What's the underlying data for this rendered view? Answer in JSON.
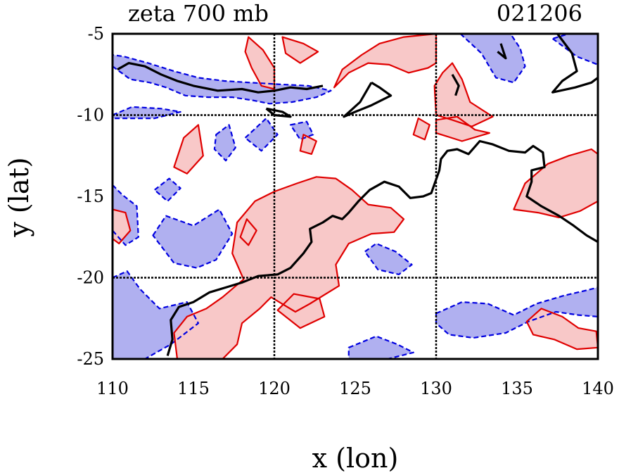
{
  "chart_data": {
    "type": "contour",
    "title": "zeta 700 mb",
    "date_label": "021206",
    "xlabel": "x (lon)",
    "ylabel": "y (lat)",
    "xlim": [
      110,
      140
    ],
    "ylim": [
      -25,
      -5
    ],
    "xticks": [
      "110",
      "115",
      "120",
      "125",
      "130",
      "135",
      "140"
    ],
    "yticks": [
      "-5",
      "-10",
      "-15",
      "-20",
      "-25"
    ],
    "xtick_values": [
      110,
      115,
      120,
      125,
      130,
      135,
      140
    ],
    "ytick_values": [
      -5,
      -10,
      -15,
      -20,
      -25
    ],
    "grid_x": [
      120,
      130
    ],
    "grid_y": [
      -10,
      -20
    ],
    "colors": {
      "positive_fill": "#f8c8c8",
      "positive_line": "#e00000",
      "negative_fill": "#b0b0f0",
      "negative_line": "#0000e0",
      "coastline": "#000000",
      "grid": "#000000"
    },
    "coastline": [
      [
        [
          110.3,
          -7.2
        ],
        [
          111.0,
          -6.8
        ],
        [
          112.0,
          -7.0
        ],
        [
          113.0,
          -7.5
        ],
        [
          114.0,
          -7.9
        ],
        [
          115.0,
          -8.2
        ],
        [
          116.5,
          -8.5
        ],
        [
          118.0,
          -8.4
        ],
        [
          119.0,
          -8.6
        ],
        [
          120.0,
          -8.5
        ],
        [
          121.0,
          -8.3
        ],
        [
          122.0,
          -8.4
        ],
        [
          123.0,
          -8.2
        ]
      ],
      [
        [
          126.0,
          -8.0
        ],
        [
          126.5,
          -8.3
        ],
        [
          127.2,
          -8.8
        ],
        [
          126.0,
          -9.4
        ],
        [
          125.0,
          -9.8
        ],
        [
          124.3,
          -10.1
        ],
        [
          125.3,
          -9.2
        ],
        [
          126.0,
          -8.0
        ]
      ],
      [
        [
          119.5,
          -9.6
        ],
        [
          120.5,
          -9.8
        ],
        [
          121.0,
          -10.1
        ],
        [
          120.0,
          -10.0
        ],
        [
          119.5,
          -9.6
        ]
      ],
      [
        [
          131.0,
          -7.5
        ],
        [
          131.4,
          -8.2
        ],
        [
          131.2,
          -8.8
        ]
      ],
      [
        [
          134.0,
          -5.6
        ],
        [
          134.3,
          -6.5
        ],
        [
          133.8,
          -6.1
        ]
      ],
      [
        [
          137.5,
          -5.0
        ],
        [
          138.4,
          -6.2
        ],
        [
          138.7,
          -7.3
        ],
        [
          137.8,
          -7.9
        ],
        [
          137.2,
          -8.6
        ],
        [
          138.6,
          -8.3
        ],
        [
          139.6,
          -8.0
        ],
        [
          140.0,
          -7.7
        ]
      ],
      [
        [
          113.4,
          -24.8
        ],
        [
          113.7,
          -23.8
        ],
        [
          113.6,
          -22.6
        ],
        [
          114.1,
          -21.8
        ],
        [
          115.0,
          -21.5
        ],
        [
          116.0,
          -20.9
        ],
        [
          117.0,
          -20.6
        ],
        [
          118.0,
          -20.3
        ],
        [
          119.0,
          -19.9
        ],
        [
          120.2,
          -19.8
        ],
        [
          121.0,
          -19.4
        ],
        [
          121.8,
          -18.5
        ],
        [
          122.3,
          -17.8
        ],
        [
          122.2,
          -17.0
        ],
        [
          123.0,
          -16.6
        ],
        [
          123.6,
          -16.2
        ],
        [
          124.2,
          -16.4
        ],
        [
          124.6,
          -16.0
        ],
        [
          125.2,
          -15.3
        ],
        [
          125.9,
          -14.6
        ],
        [
          126.8,
          -14.1
        ],
        [
          127.7,
          -14.4
        ],
        [
          128.4,
          -15.1
        ],
        [
          129.2,
          -15.0
        ],
        [
          129.7,
          -14.8
        ],
        [
          130.2,
          -13.4
        ],
        [
          130.3,
          -12.7
        ],
        [
          130.7,
          -12.2
        ],
        [
          131.3,
          -12.1
        ],
        [
          132.0,
          -12.4
        ],
        [
          132.7,
          -11.6
        ],
        [
          133.5,
          -11.8
        ],
        [
          134.5,
          -12.2
        ],
        [
          135.5,
          -12.3
        ],
        [
          136.0,
          -11.9
        ],
        [
          136.6,
          -12.3
        ],
        [
          136.7,
          -13.2
        ],
        [
          135.9,
          -13.4
        ],
        [
          135.9,
          -14.1
        ],
        [
          135.6,
          -15.0
        ],
        [
          136.5,
          -15.6
        ],
        [
          137.6,
          -16.2
        ],
        [
          138.5,
          -16.8
        ],
        [
          139.3,
          -17.4
        ],
        [
          140.0,
          -17.8
        ]
      ]
    ],
    "positive_regions": [
      [
        [
          114.0,
          -25.0
        ],
        [
          113.8,
          -23.4
        ],
        [
          114.6,
          -22.4
        ],
        [
          115.8,
          -21.9
        ],
        [
          116.8,
          -21.2
        ],
        [
          118.1,
          -20.1
        ],
        [
          117.4,
          -18.5
        ],
        [
          117.7,
          -16.6
        ],
        [
          118.8,
          -15.3
        ],
        [
          120.0,
          -14.7
        ],
        [
          121.4,
          -14.2
        ],
        [
          122.6,
          -13.8
        ],
        [
          123.8,
          -13.9
        ],
        [
          124.8,
          -14.6
        ],
        [
          125.8,
          -15.5
        ],
        [
          127.2,
          -15.7
        ],
        [
          128.0,
          -16.4
        ],
        [
          127.4,
          -17.2
        ],
        [
          126.0,
          -17.3
        ],
        [
          124.6,
          -17.9
        ],
        [
          123.8,
          -19.2
        ],
        [
          124.0,
          -20.5
        ],
        [
          122.2,
          -21.6
        ],
        [
          121.3,
          -22.1
        ],
        [
          119.8,
          -21.2
        ],
        [
          119.1,
          -21.9
        ],
        [
          118.0,
          -22.8
        ],
        [
          117.7,
          -24.1
        ],
        [
          116.8,
          -25.0
        ]
      ],
      [
        [
          120.2,
          -22.0
        ],
        [
          121.2,
          -21.0
        ],
        [
          122.8,
          -21.3
        ],
        [
          123.1,
          -22.4
        ],
        [
          121.6,
          -23.1
        ],
        [
          120.2,
          -22.0
        ]
      ],
      [
        [
          117.9,
          -17.5
        ],
        [
          118.3,
          -16.4
        ],
        [
          118.9,
          -17.1
        ],
        [
          118.4,
          -18.0
        ]
      ],
      [
        [
          134.8,
          -15.8
        ],
        [
          135.5,
          -14.2
        ],
        [
          136.9,
          -13.0
        ],
        [
          138.2,
          -12.5
        ],
        [
          139.6,
          -12.1
        ],
        [
          140.0,
          -12.4
        ],
        [
          140.0,
          -15.3
        ],
        [
          138.9,
          -15.9
        ],
        [
          137.6,
          -16.3
        ],
        [
          136.3,
          -16.0
        ],
        [
          134.8,
          -15.8
        ]
      ],
      [
        [
          130.0,
          -10.3
        ],
        [
          131.3,
          -10.1
        ],
        [
          132.4,
          -10.9
        ],
        [
          133.3,
          -11.1
        ],
        [
          131.6,
          -11.6
        ],
        [
          130.0,
          -11.1
        ]
      ],
      [
        [
          128.6,
          -11.2
        ],
        [
          128.9,
          -10.2
        ],
        [
          129.6,
          -10.6
        ],
        [
          129.3,
          -11.5
        ]
      ],
      [
        [
          130.0,
          -10.0
        ],
        [
          129.9,
          -8.2
        ],
        [
          130.4,
          -7.4
        ],
        [
          131.0,
          -6.8
        ],
        [
          131.6,
          -7.8
        ],
        [
          132.1,
          -9.2
        ],
        [
          133.5,
          -10.1
        ],
        [
          132.2,
          -10.7
        ],
        [
          131.0,
          -10.3
        ],
        [
          130.0,
          -10.0
        ]
      ],
      [
        [
          123.7,
          -8.3
        ],
        [
          124.6,
          -7.4
        ],
        [
          125.8,
          -6.8
        ],
        [
          127.1,
          -6.9
        ],
        [
          128.3,
          -7.4
        ],
        [
          129.5,
          -7.1
        ],
        [
          130.0,
          -6.8
        ],
        [
          130.0,
          -5.0
        ],
        [
          128.0,
          -5.2
        ],
        [
          126.5,
          -5.6
        ],
        [
          125.4,
          -6.3
        ],
        [
          124.2,
          -7.2
        ],
        [
          123.7,
          -8.3
        ]
      ],
      [
        [
          118.4,
          -5.2
        ],
        [
          119.3,
          -6.0
        ],
        [
          120.0,
          -7.1
        ],
        [
          120.0,
          -8.4
        ],
        [
          119.2,
          -8.2
        ],
        [
          118.6,
          -7.1
        ],
        [
          118.2,
          -6.1
        ]
      ],
      [
        [
          120.5,
          -5.2
        ],
        [
          121.8,
          -5.6
        ],
        [
          122.7,
          -6.1
        ],
        [
          121.6,
          -6.8
        ],
        [
          120.7,
          -6.2
        ]
      ],
      [
        [
          113.8,
          -13.2
        ],
        [
          114.4,
          -11.4
        ],
        [
          115.3,
          -10.6
        ],
        [
          115.6,
          -12.5
        ],
        [
          114.6,
          -13.6
        ]
      ],
      [
        [
          110.0,
          -15.8
        ],
        [
          110.8,
          -16.0
        ],
        [
          111.1,
          -17.1
        ],
        [
          110.4,
          -17.9
        ],
        [
          110.0,
          -17.6
        ]
      ],
      [
        [
          135.6,
          -22.7
        ],
        [
          136.5,
          -21.9
        ],
        [
          137.8,
          -22.4
        ],
        [
          138.8,
          -23.1
        ],
        [
          139.9,
          -23.3
        ],
        [
          140.0,
          -24.3
        ],
        [
          138.7,
          -24.4
        ],
        [
          137.3,
          -23.8
        ],
        [
          136.0,
          -23.5
        ],
        [
          135.6,
          -22.7
        ]
      ],
      [
        [
          121.6,
          -12.2
        ],
        [
          121.8,
          -11.2
        ],
        [
          122.6,
          -11.6
        ],
        [
          122.3,
          -12.4
        ]
      ]
    ],
    "negative_regions": [
      [
        [
          110.0,
          -7.0
        ],
        [
          111.1,
          -7.8
        ],
        [
          112.3,
          -8.0
        ],
        [
          113.3,
          -8.3
        ],
        [
          114.5,
          -8.8
        ],
        [
          115.9,
          -8.9
        ],
        [
          117.4,
          -8.9
        ],
        [
          118.7,
          -9.1
        ],
        [
          119.7,
          -9.3
        ],
        [
          121.1,
          -9.2
        ],
        [
          122.6,
          -8.9
        ],
        [
          123.5,
          -8.5
        ],
        [
          122.1,
          -8.2
        ],
        [
          120.2,
          -8.1
        ],
        [
          118.5,
          -8.0
        ],
        [
          116.9,
          -7.9
        ],
        [
          115.3,
          -7.7
        ],
        [
          113.8,
          -7.3
        ],
        [
          112.2,
          -6.8
        ],
        [
          110.7,
          -6.4
        ],
        [
          110.0,
          -6.3
        ]
      ],
      [
        [
          110.0,
          -10.0
        ],
        [
          111.2,
          -9.5
        ],
        [
          113.0,
          -9.6
        ],
        [
          114.2,
          -9.8
        ],
        [
          112.6,
          -10.2
        ],
        [
          110.0,
          -10.2
        ]
      ],
      [
        [
          116.4,
          -11.2
        ],
        [
          117.2,
          -10.6
        ],
        [
          117.6,
          -12.0
        ],
        [
          117.0,
          -12.8
        ],
        [
          116.3,
          -12.1
        ]
      ],
      [
        [
          118.2,
          -11.4
        ],
        [
          119.5,
          -10.2
        ],
        [
          120.2,
          -11.2
        ],
        [
          119.2,
          -12.2
        ]
      ],
      [
        [
          110.0,
          -20.0
        ],
        [
          110.9,
          -19.6
        ],
        [
          111.7,
          -20.7
        ],
        [
          112.9,
          -21.9
        ],
        [
          114.6,
          -21.5
        ],
        [
          115.3,
          -22.8
        ],
        [
          113.6,
          -24.1
        ],
        [
          112.0,
          -25.0
        ],
        [
          110.0,
          -25.0
        ]
      ],
      [
        [
          110.0,
          -14.3
        ],
        [
          110.6,
          -14.9
        ],
        [
          111.5,
          -15.6
        ],
        [
          111.6,
          -17.5
        ],
        [
          110.8,
          -18.0
        ],
        [
          110.0,
          -17.1
        ]
      ],
      [
        [
          112.5,
          -17.4
        ],
        [
          113.3,
          -16.2
        ],
        [
          115.0,
          -16.8
        ],
        [
          116.6,
          -15.8
        ],
        [
          117.4,
          -17.3
        ],
        [
          116.4,
          -18.9
        ],
        [
          115.2,
          -19.4
        ],
        [
          113.8,
          -19.1
        ],
        [
          112.5,
          -17.4
        ]
      ],
      [
        [
          112.6,
          -14.6
        ],
        [
          113.5,
          -13.9
        ],
        [
          114.2,
          -14.5
        ],
        [
          113.4,
          -15.3
        ]
      ],
      [
        [
          130.0,
          -22.2
        ],
        [
          131.6,
          -21.5
        ],
        [
          133.2,
          -21.6
        ],
        [
          134.8,
          -22.3
        ],
        [
          136.2,
          -21.6
        ],
        [
          137.9,
          -21.1
        ],
        [
          139.2,
          -20.8
        ],
        [
          140.0,
          -20.6
        ],
        [
          140.0,
          -22.4
        ],
        [
          138.8,
          -22.3
        ],
        [
          137.4,
          -22.1
        ],
        [
          135.7,
          -22.7
        ],
        [
          134.3,
          -23.4
        ],
        [
          132.3,
          -23.7
        ],
        [
          130.8,
          -23.5
        ],
        [
          130.0,
          -22.8
        ]
      ],
      [
        [
          124.6,
          -24.3
        ],
        [
          126.3,
          -23.6
        ],
        [
          127.6,
          -24.1
        ],
        [
          128.6,
          -24.6
        ],
        [
          127.0,
          -25.0
        ],
        [
          124.6,
          -25.0
        ]
      ],
      [
        [
          131.5,
          -5.0
        ],
        [
          132.8,
          -6.2
        ],
        [
          133.7,
          -7.7
        ],
        [
          134.8,
          -8.0
        ],
        [
          135.5,
          -7.0
        ],
        [
          135.2,
          -5.9
        ],
        [
          134.6,
          -5.0
        ]
      ],
      [
        [
          137.2,
          -5.3
        ],
        [
          138.7,
          -6.4
        ],
        [
          140.0,
          -6.9
        ],
        [
          140.0,
          -5.0
        ],
        [
          138.2,
          -5.0
        ]
      ],
      [
        [
          121.0,
          -10.6
        ],
        [
          122.0,
          -10.4
        ],
        [
          122.4,
          -11.2
        ],
        [
          121.6,
          -11.5
        ]
      ],
      [
        [
          125.6,
          -18.4
        ],
        [
          126.3,
          -17.9
        ],
        [
          127.5,
          -18.4
        ],
        [
          128.5,
          -19.2
        ],
        [
          127.7,
          -19.8
        ],
        [
          126.4,
          -19.5
        ]
      ]
    ]
  }
}
